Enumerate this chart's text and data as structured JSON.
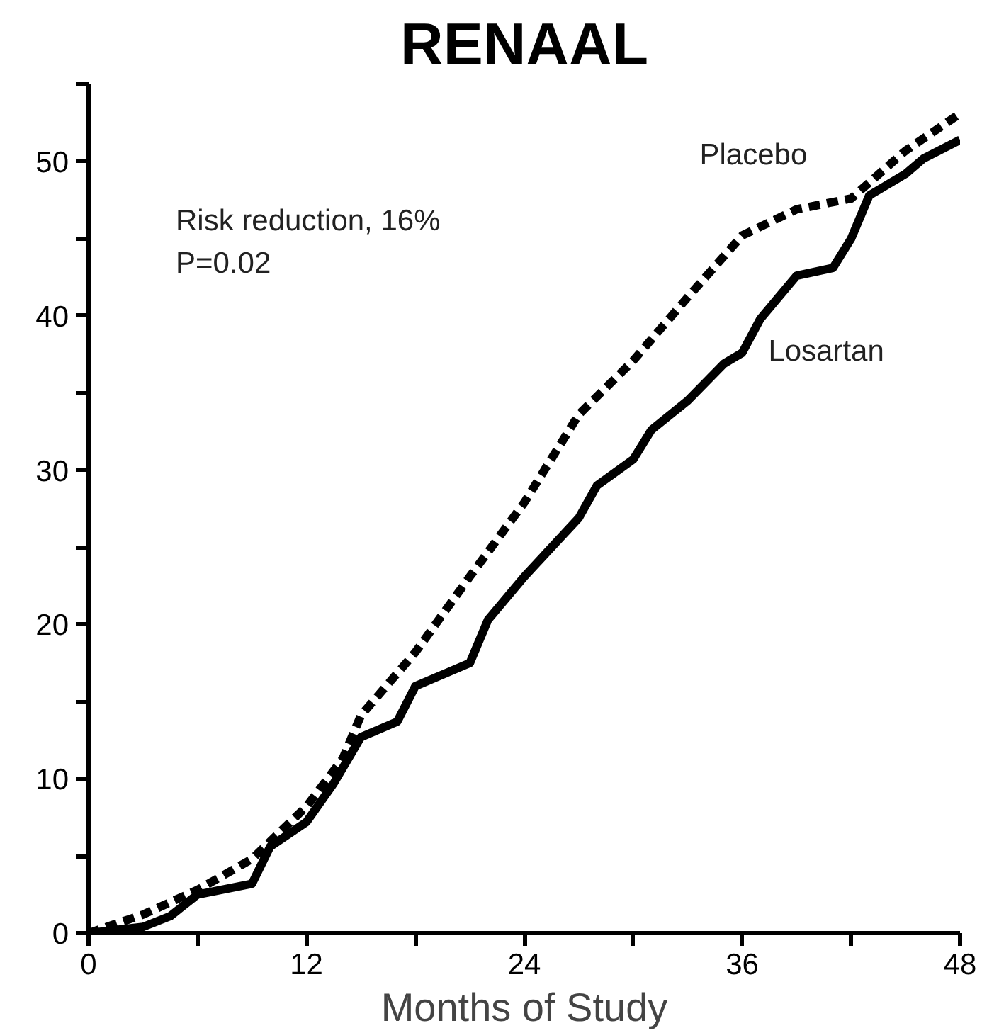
{
  "chart_data": {
    "type": "line",
    "title": "RENAAL",
    "xlabel": "Months of Study",
    "annotations": [
      "Risk reduction, 16%",
      "P=0.02"
    ],
    "xlim": [
      0,
      48
    ],
    "xticks": [
      0,
      {
        "value": 6,
        "label": null
      },
      12,
      {
        "value": 18,
        "label": null
      },
      24,
      {
        "value": 30,
        "label": null
      },
      36,
      {
        "value": 42,
        "label": null
      },
      48
    ],
    "ylim": [
      0,
      55
    ],
    "yticks": [
      0,
      {
        "value": 5,
        "label": null
      },
      10,
      {
        "value": 15,
        "label": null
      },
      20,
      {
        "value": 25,
        "label": null
      },
      30,
      {
        "value": 35,
        "label": null
      },
      40,
      {
        "value": 45,
        "label": null
      },
      50,
      {
        "value": 55,
        "label": null
      }
    ],
    "grid": false,
    "marker": "none",
    "series": [
      {
        "name": "Placebo",
        "color": "#000000",
        "line_style": "dashed",
        "x": [
          0,
          3,
          6,
          9,
          12,
          14,
          15,
          18,
          21,
          22.5,
          24,
          27,
          30,
          33,
          36,
          39,
          42,
          45,
          48
        ],
        "values": [
          0,
          1.2,
          2.8,
          4.8,
          8.2,
          11.3,
          14.1,
          18.2,
          23.1,
          25.5,
          27.9,
          33.6,
          37.1,
          41.2,
          45.2,
          46.9,
          47.6,
          50.7,
          53.1
        ]
      },
      {
        "name": "Losartan",
        "color": "#000000",
        "line_style": "solid",
        "x": [
          0,
          3,
          4.5,
          6,
          9,
          10,
          12,
          13.5,
          15,
          17,
          18,
          21,
          22,
          24,
          27,
          28,
          30,
          31,
          33,
          35,
          36,
          37,
          39,
          41,
          42,
          43,
          45,
          46,
          48
        ],
        "values": [
          0,
          0.4,
          1.1,
          2.5,
          3.2,
          5.6,
          7.2,
          9.7,
          12.7,
          13.7,
          16.0,
          17.5,
          20.3,
          23.1,
          26.9,
          29.0,
          30.7,
          32.6,
          34.5,
          36.9,
          37.6,
          39.8,
          42.6,
          43.1,
          45.0,
          47.8,
          49.2,
          50.2,
          51.4
        ]
      }
    ]
  }
}
